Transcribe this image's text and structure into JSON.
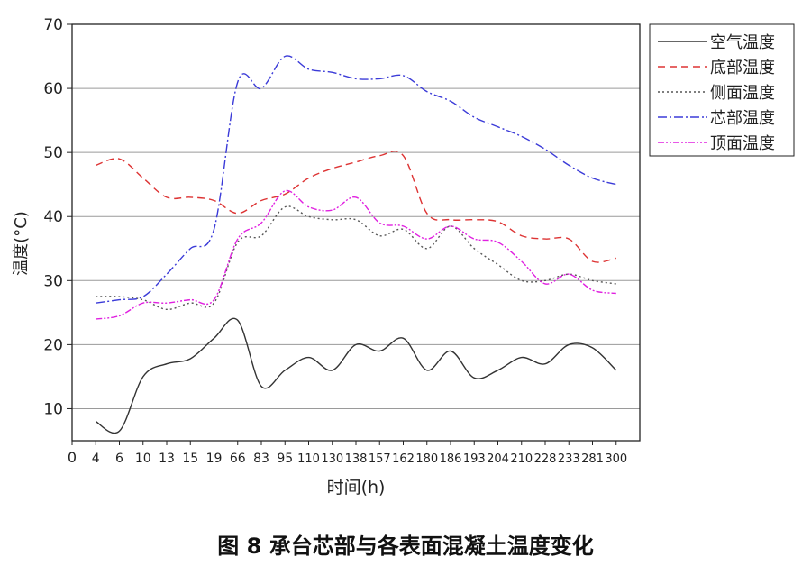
{
  "caption": "图 8  承台芯部与各表面混凝土温度变化",
  "chart_data": {
    "type": "line",
    "xlabel": "时间(h)",
    "ylabel": "温度(°C)",
    "x_ticks": [
      "0",
      "4",
      "6",
      "10",
      "13",
      "15",
      "19",
      "66",
      "83",
      "95",
      "110",
      "130",
      "138",
      "157",
      "162",
      "180",
      "186",
      "193",
      "204",
      "210",
      "228",
      "233",
      "281",
      "300"
    ],
    "ylim": [
      5,
      70
    ],
    "y_ticks": [
      10,
      20,
      30,
      40,
      50,
      60,
      70
    ],
    "grid": true,
    "legend_position": "right",
    "series": [
      {
        "name": "空气温度",
        "color": "#333333",
        "dash": "none",
        "points": [
          [
            4,
            8
          ],
          [
            6,
            6.5
          ],
          [
            10,
            15
          ],
          [
            13,
            17
          ],
          [
            15,
            17.8
          ],
          [
            19,
            21
          ],
          [
            66,
            23.8
          ],
          [
            83,
            13.5
          ],
          [
            95,
            16
          ],
          [
            110,
            18
          ],
          [
            130,
            16
          ],
          [
            138,
            20
          ],
          [
            157,
            19
          ],
          [
            162,
            21
          ],
          [
            180,
            16
          ],
          [
            186,
            19
          ],
          [
            193,
            14.8
          ],
          [
            204,
            16
          ],
          [
            210,
            18
          ],
          [
            228,
            17
          ],
          [
            233,
            20
          ],
          [
            281,
            19.5
          ],
          [
            300,
            16
          ]
        ]
      },
      {
        "name": "底部温度",
        "color": "#dd3333",
        "dash": "8 5",
        "points": [
          [
            4,
            48
          ],
          [
            6,
            49
          ],
          [
            10,
            46
          ],
          [
            13,
            43
          ],
          [
            15,
            43
          ],
          [
            19,
            42.5
          ],
          [
            66,
            40.5
          ],
          [
            83,
            42.5
          ],
          [
            95,
            43.5
          ],
          [
            110,
            46
          ],
          [
            130,
            47.5
          ],
          [
            138,
            48.5
          ],
          [
            157,
            49.5
          ],
          [
            162,
            49.5
          ],
          [
            180,
            40.5
          ],
          [
            186,
            39.5
          ],
          [
            193,
            39.5
          ],
          [
            204,
            39.2
          ],
          [
            210,
            37
          ],
          [
            228,
            36.5
          ],
          [
            233,
            36.5
          ],
          [
            281,
            33
          ],
          [
            300,
            33.5
          ]
        ]
      },
      {
        "name": "侧面温度",
        "color": "#555555",
        "dash": "2 3",
        "points": [
          [
            4,
            27.5
          ],
          [
            6,
            27.5
          ],
          [
            10,
            27
          ],
          [
            13,
            25.5
          ],
          [
            15,
            26.5
          ],
          [
            19,
            26.5
          ],
          [
            66,
            36
          ],
          [
            83,
            37
          ],
          [
            95,
            41.5
          ],
          [
            110,
            40
          ],
          [
            130,
            39.5
          ],
          [
            138,
            39.5
          ],
          [
            157,
            37
          ],
          [
            162,
            38
          ],
          [
            180,
            35
          ],
          [
            186,
            38.5
          ],
          [
            193,
            35
          ],
          [
            204,
            32.5
          ],
          [
            210,
            30
          ],
          [
            228,
            30
          ],
          [
            233,
            31
          ],
          [
            281,
            30
          ],
          [
            300,
            29.5
          ]
        ]
      },
      {
        "name": "芯部温度",
        "color": "#3b3bd8",
        "dash": "10 3 2 3",
        "points": [
          [
            4,
            26.5
          ],
          [
            6,
            27
          ],
          [
            10,
            27.5
          ],
          [
            13,
            31
          ],
          [
            15,
            35
          ],
          [
            19,
            38
          ],
          [
            66,
            61
          ],
          [
            83,
            60
          ],
          [
            95,
            65
          ],
          [
            110,
            63
          ],
          [
            130,
            62.5
          ],
          [
            138,
            61.5
          ],
          [
            157,
            61.5
          ],
          [
            162,
            62
          ],
          [
            180,
            59.5
          ],
          [
            186,
            58
          ],
          [
            193,
            55.5
          ],
          [
            204,
            54
          ],
          [
            210,
            52.5
          ],
          [
            228,
            50.5
          ],
          [
            233,
            48
          ],
          [
            281,
            46
          ],
          [
            300,
            45
          ]
        ]
      },
      {
        "name": "顶面温度",
        "color": "#e020e0",
        "dash": "7 2 2 2 2 2",
        "points": [
          [
            4,
            24
          ],
          [
            6,
            24.5
          ],
          [
            10,
            26.5
          ],
          [
            13,
            26.5
          ],
          [
            15,
            27
          ],
          [
            19,
            27
          ],
          [
            66,
            36.5
          ],
          [
            83,
            39
          ],
          [
            95,
            44
          ],
          [
            110,
            41.5
          ],
          [
            130,
            41
          ],
          [
            138,
            43
          ],
          [
            157,
            39
          ],
          [
            162,
            38.5
          ],
          [
            180,
            36.5
          ],
          [
            186,
            38.5
          ],
          [
            193,
            36.5
          ],
          [
            204,
            36
          ],
          [
            210,
            33
          ],
          [
            228,
            29.5
          ],
          [
            233,
            31
          ],
          [
            281,
            28.5
          ],
          [
            300,
            28
          ]
        ]
      }
    ]
  }
}
